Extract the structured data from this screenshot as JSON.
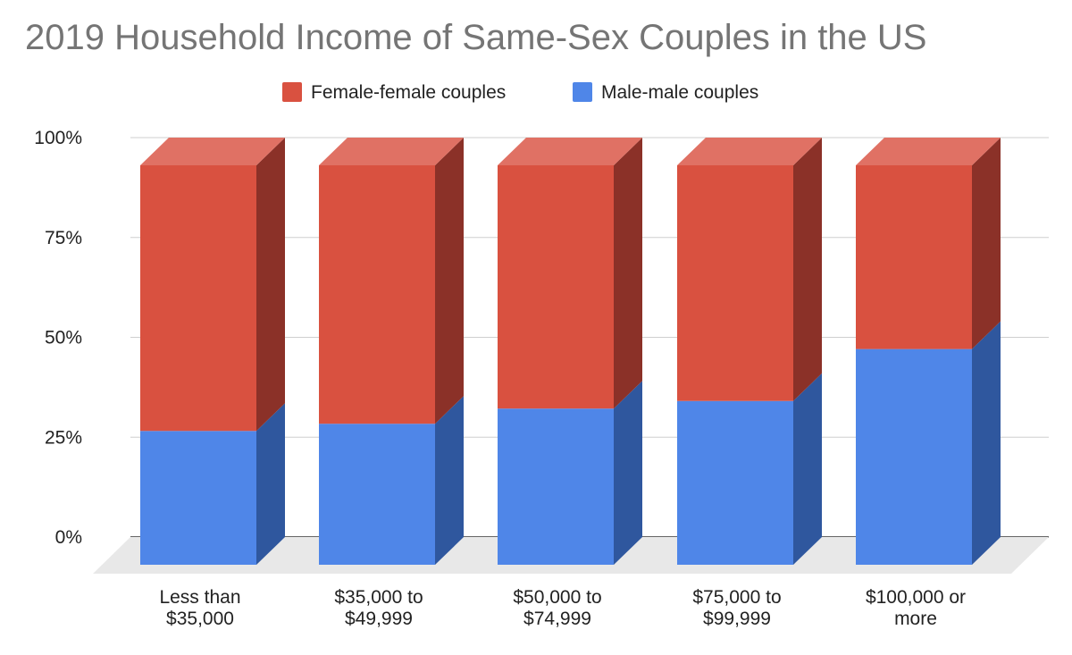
{
  "chart_data": {
    "type": "bar",
    "stacked": true,
    "percent_stacked": true,
    "three_d": true,
    "title": "2019 Household Income of Same-Sex Couples in the US",
    "categories": [
      "Less than $35,000",
      "$35,000 to $49,999",
      "$50,000 to $74,999",
      "$75,000 to $99,999",
      "$100,000 or more"
    ],
    "series": [
      {
        "name": "Male-male couples",
        "color": "#4f86e8",
        "side_color": "#2f579e",
        "values": [
          33.5,
          35.3,
          39.1,
          41,
          54
        ]
      },
      {
        "name": "Female-female couples",
        "color": "#d95140",
        "side_color": "#8b3128",
        "top_color": "#e07164",
        "values": [
          66.5,
          64.7,
          60.9,
          59,
          46
        ]
      }
    ],
    "legend_order": [
      "Female-female couples",
      "Male-male couples"
    ],
    "legend_position": "top",
    "ylim": [
      0,
      100
    ],
    "yticks": [
      "0%",
      "25%",
      "50%",
      "75%",
      "100%"
    ],
    "grid": true,
    "xlabel": "",
    "ylabel": ""
  }
}
